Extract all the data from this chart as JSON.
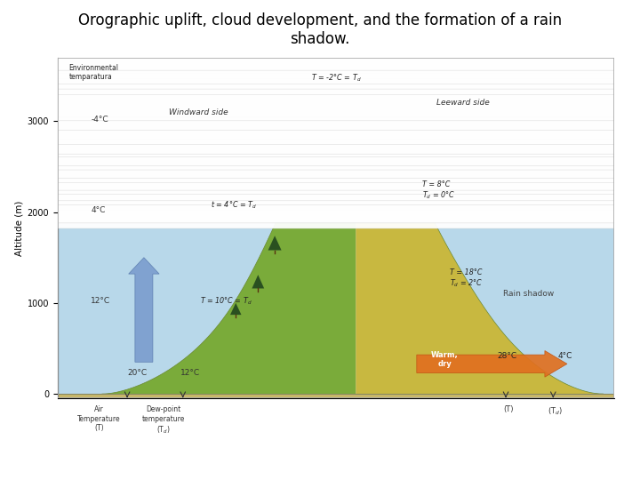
{
  "title_line1": "Orographic uplift, cloud development, and the formation of a rain",
  "title_line2": "shadow.",
  "title_fontsize": 12,
  "fig_bg": "#ffffff",
  "sky_color": "#b8d8ea",
  "ground_color": "#c8b86a",
  "mountain_green": "#7aab3a",
  "mountain_lee": "#c8b840",
  "cloud_white": "#f0f0f0",
  "cloud_gray": "#d0d0d0",
  "blue_arrow": "#6888cc",
  "orange_arrow": "#d86010",
  "pink_arrow": "#c090b8",
  "frame_bg": "#e8e0d0",
  "yticks": [
    0,
    1000,
    2000,
    3000
  ],
  "axis_label": "Altitude (m)"
}
